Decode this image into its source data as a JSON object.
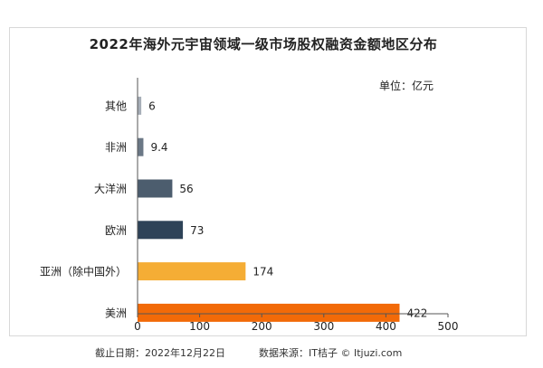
{
  "chart_data": {
    "type": "bar",
    "orientation": "horizontal",
    "title": "2022年海外元宇宙领域一级市场股权融资金额地区分布",
    "unit_label": "单位：亿元",
    "categories": [
      "其他",
      "非洲",
      "大洋洲",
      "欧洲",
      "亚洲（除中国外）",
      "美洲"
    ],
    "values": [
      6,
      9.4,
      56,
      73,
      174,
      422
    ],
    "colors": [
      "#a7aeb8",
      "#6b7886",
      "#4c5d6e",
      "#2e4358",
      "#f5ad35",
      "#f26a08"
    ],
    "xlim": [
      0,
      500
    ],
    "xticks": [
      0,
      100,
      200,
      300,
      400,
      500
    ],
    "grid": false,
    "legend": "none"
  },
  "footer": {
    "date": "截止日期：2022年12月22日",
    "source": "数据来源：IT桔子 © Itjuzi.com"
  }
}
